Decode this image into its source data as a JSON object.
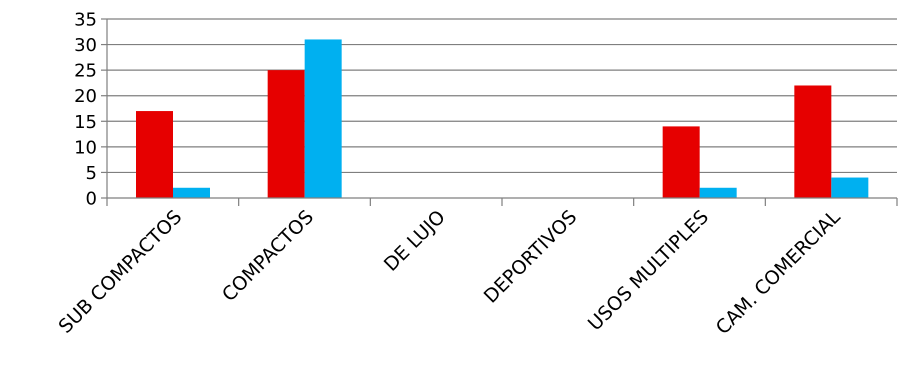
{
  "chart_data": {
    "type": "bar",
    "categories": [
      "SUB COMPACTOS",
      "COMPACTOS",
      "DE LUJO",
      "DEPORTIVOS",
      "USOS MULTIPLES",
      "CAM. COMERCIAL"
    ],
    "series": [
      {
        "values": [
          17,
          25,
          0,
          0,
          14,
          22
        ],
        "color": "#e60000"
      },
      {
        "values": [
          2,
          31,
          0,
          0,
          2,
          4
        ],
        "color": "#00b0f0"
      }
    ],
    "yticks": [
      "0",
      "5",
      "10",
      "15",
      "20",
      "25",
      "30",
      "35"
    ],
    "ylim": [
      0,
      35
    ],
    "grid": true,
    "legend": "none"
  }
}
